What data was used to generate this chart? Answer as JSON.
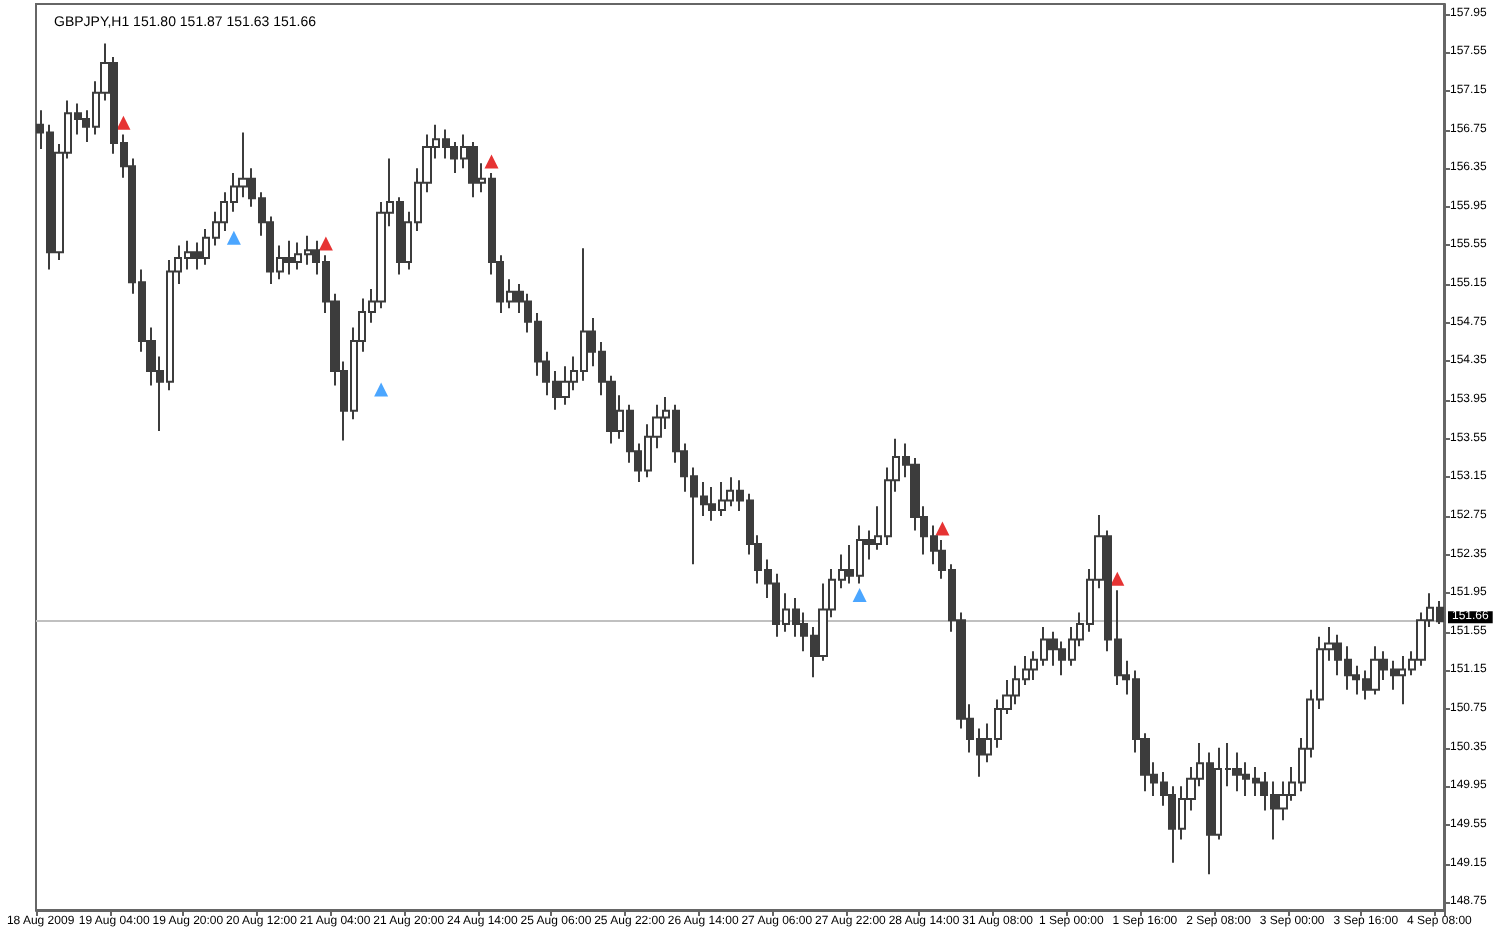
{
  "chart_data": {
    "type": "candlestick",
    "title": "GBPJPY,H1 151.80 151.87 151.63 151.66",
    "color": "#3c3c3c",
    "categories": [
      "18 Aug 2009",
      null,
      null,
      null,
      null,
      null,
      null,
      null,
      "19 Aug 04:00",
      null,
      null,
      null,
      null,
      null,
      null,
      null,
      "19 Aug 20:00",
      null,
      null,
      null,
      null,
      null,
      null,
      null,
      "20 Aug 12:00",
      null,
      null,
      null,
      null,
      null,
      null,
      null,
      "21 Aug 04:00",
      null,
      null,
      null,
      null,
      null,
      null,
      null,
      "21 Aug 20:00",
      null,
      null,
      null,
      null,
      null,
      null,
      null,
      "24 Aug 14:00",
      null,
      null,
      null,
      null,
      null,
      null,
      null,
      "25 Aug 06:00",
      null,
      null,
      null,
      null,
      null,
      null,
      null,
      "25 Aug 22:00",
      null,
      null,
      null,
      null,
      null,
      null,
      null,
      "26 Aug 14:00",
      null,
      null,
      null,
      null,
      null,
      null,
      null,
      "27 Aug 06:00",
      null,
      null,
      null,
      null,
      null,
      null,
      null,
      "27 Aug 22:00",
      null,
      null,
      null,
      null,
      null,
      null,
      null,
      "28 Aug 14:00",
      null,
      null,
      null,
      null,
      null,
      null,
      null,
      "31 Aug 08:00",
      null,
      null,
      null,
      null,
      null,
      null,
      null,
      "1 Sep 00:00",
      null,
      null,
      null,
      null,
      null,
      null,
      null,
      "1 Sep 16:00",
      null,
      null,
      null,
      null,
      null,
      null,
      null,
      "2 Sep 08:00",
      null,
      null,
      null,
      null,
      null,
      null,
      null,
      "3 Sep 00:00",
      null,
      null,
      null,
      null,
      null,
      null,
      null,
      "3 Sep 16:00",
      null,
      null,
      null,
      null,
      null,
      null,
      null,
      "4 Sep 08:00"
    ],
    "ohlc": [
      [
        156.8,
        156.95,
        156.55,
        156.72
      ],
      [
        156.72,
        156.8,
        155.3,
        155.48
      ],
      [
        155.48,
        156.6,
        155.4,
        156.51
      ],
      [
        156.51,
        157.05,
        156.45,
        156.92
      ],
      [
        156.92,
        157.02,
        156.7,
        156.86
      ],
      [
        156.86,
        156.95,
        156.62,
        156.78
      ],
      [
        156.78,
        157.25,
        156.7,
        157.13
      ],
      [
        157.13,
        157.64,
        157.05,
        157.44
      ],
      [
        157.44,
        157.5,
        156.5,
        156.61
      ],
      [
        156.61,
        156.7,
        156.25,
        156.37
      ],
      [
        156.37,
        156.45,
        155.05,
        155.17
      ],
      [
        155.17,
        155.3,
        154.45,
        154.56
      ],
      [
        154.56,
        154.7,
        154.1,
        154.25
      ],
      [
        154.25,
        154.4,
        153.63,
        154.14
      ],
      [
        154.14,
        155.4,
        154.05,
        155.28
      ],
      [
        155.28,
        155.55,
        155.15,
        155.42
      ],
      [
        155.42,
        155.6,
        155.3,
        155.48
      ],
      [
        155.48,
        155.58,
        155.3,
        155.42
      ],
      [
        155.42,
        155.72,
        155.35,
        155.63
      ],
      [
        155.63,
        155.9,
        155.55,
        155.79
      ],
      [
        155.79,
        156.1,
        155.7,
        156.0
      ],
      [
        156.0,
        156.3,
        155.9,
        156.16
      ],
      [
        156.16,
        156.72,
        156.05,
        156.24
      ],
      [
        156.24,
        156.35,
        155.95,
        156.04
      ],
      [
        156.04,
        156.1,
        155.65,
        155.79
      ],
      [
        155.79,
        155.85,
        155.15,
        155.28
      ],
      [
        155.28,
        155.55,
        155.2,
        155.42
      ],
      [
        155.42,
        155.6,
        155.25,
        155.38
      ],
      [
        155.38,
        155.58,
        155.3,
        155.46
      ],
      [
        155.46,
        155.65,
        155.35,
        155.5
      ],
      [
        155.5,
        155.6,
        155.25,
        155.38
      ],
      [
        155.38,
        155.45,
        154.85,
        154.97
      ],
      [
        154.97,
        155.05,
        154.1,
        154.25
      ],
      [
        154.25,
        154.35,
        153.53,
        153.84
      ],
      [
        153.84,
        154.7,
        153.75,
        154.56
      ],
      [
        154.56,
        155.0,
        154.45,
        154.86
      ],
      [
        154.86,
        155.1,
        154.75,
        154.97
      ],
      [
        154.97,
        156.0,
        154.9,
        155.89
      ],
      [
        155.89,
        156.45,
        155.75,
        156.0
      ],
      [
        156.0,
        156.05,
        155.25,
        155.38
      ],
      [
        155.38,
        155.9,
        155.3,
        155.79
      ],
      [
        155.79,
        156.35,
        155.7,
        156.2
      ],
      [
        156.2,
        156.7,
        156.1,
        156.57
      ],
      [
        156.57,
        156.8,
        156.45,
        156.65
      ],
      [
        156.65,
        156.75,
        156.45,
        156.57
      ],
      [
        156.57,
        156.62,
        156.3,
        156.45
      ],
      [
        156.45,
        156.7,
        156.35,
        156.57
      ],
      [
        156.57,
        156.62,
        156.05,
        156.2
      ],
      [
        156.2,
        156.4,
        156.1,
        156.24
      ],
      [
        156.24,
        156.3,
        155.25,
        155.38
      ],
      [
        155.38,
        155.45,
        154.85,
        154.97
      ],
      [
        154.97,
        155.2,
        154.9,
        155.07
      ],
      [
        155.07,
        155.15,
        154.85,
        154.97
      ],
      [
        154.97,
        155.05,
        154.65,
        154.76
      ],
      [
        154.76,
        154.85,
        154.2,
        154.35
      ],
      [
        154.35,
        154.45,
        154.0,
        154.14
      ],
      [
        154.14,
        154.25,
        153.85,
        153.98
      ],
      [
        153.98,
        154.3,
        153.9,
        154.14
      ],
      [
        154.14,
        154.4,
        154.05,
        154.25
      ],
      [
        154.25,
        155.52,
        154.15,
        154.66
      ],
      [
        154.66,
        154.8,
        154.3,
        154.45
      ],
      [
        154.45,
        154.55,
        154.0,
        154.14
      ],
      [
        154.14,
        154.2,
        153.5,
        153.63
      ],
      [
        153.63,
        154.0,
        153.55,
        153.84
      ],
      [
        153.84,
        153.9,
        153.3,
        153.42
      ],
      [
        153.42,
        153.5,
        153.1,
        153.22
      ],
      [
        153.22,
        153.7,
        153.15,
        153.57
      ],
      [
        153.57,
        153.9,
        153.45,
        153.77
      ],
      [
        153.77,
        153.98,
        153.65,
        153.84
      ],
      [
        153.84,
        153.9,
        153.3,
        153.42
      ],
      [
        153.42,
        153.5,
        153.0,
        153.16
      ],
      [
        153.16,
        153.25,
        152.25,
        152.95
      ],
      [
        152.95,
        153.1,
        152.75,
        152.87
      ],
      [
        152.87,
        153.05,
        152.7,
        152.81
      ],
      [
        152.81,
        153.1,
        152.75,
        152.91
      ],
      [
        152.91,
        153.15,
        152.85,
        153.01
      ],
      [
        153.01,
        153.12,
        152.8,
        152.91
      ],
      [
        152.91,
        152.98,
        152.35,
        152.46
      ],
      [
        152.46,
        152.55,
        152.05,
        152.19
      ],
      [
        152.19,
        152.3,
        151.9,
        152.05
      ],
      [
        152.05,
        152.15,
        151.5,
        151.63
      ],
      [
        151.63,
        151.95,
        151.55,
        151.78
      ],
      [
        151.78,
        151.9,
        151.5,
        151.63
      ],
      [
        151.63,
        151.75,
        151.35,
        151.51
      ],
      [
        151.51,
        151.6,
        151.08,
        151.3
      ],
      [
        151.3,
        152.05,
        151.25,
        151.78
      ],
      [
        151.78,
        152.2,
        151.7,
        152.09
      ],
      [
        152.09,
        152.35,
        152.0,
        152.19
      ],
      [
        152.19,
        152.45,
        152.05,
        152.13
      ],
      [
        152.13,
        152.65,
        152.05,
        152.5
      ],
      [
        152.5,
        152.6,
        152.3,
        152.46
      ],
      [
        152.46,
        152.85,
        152.4,
        152.54
      ],
      [
        152.54,
        153.25,
        152.45,
        153.12
      ],
      [
        153.12,
        153.55,
        153.0,
        153.36
      ],
      [
        153.36,
        153.5,
        153.15,
        153.28
      ],
      [
        153.28,
        153.35,
        152.6,
        152.74
      ],
      [
        152.74,
        152.85,
        152.35,
        152.54
      ],
      [
        152.54,
        152.65,
        152.25,
        152.39
      ],
      [
        152.39,
        152.5,
        152.1,
        152.19
      ],
      [
        152.19,
        152.25,
        151.55,
        151.67
      ],
      [
        151.67,
        151.75,
        150.55,
        150.65
      ],
      [
        150.65,
        150.8,
        150.3,
        150.44
      ],
      [
        150.44,
        150.55,
        150.05,
        150.28
      ],
      [
        150.28,
        150.6,
        150.2,
        150.44
      ],
      [
        150.44,
        150.85,
        150.35,
        150.75
      ],
      [
        150.75,
        151.05,
        150.7,
        150.89
      ],
      [
        150.89,
        151.2,
        150.8,
        151.06
      ],
      [
        151.06,
        151.3,
        151.0,
        151.16
      ],
      [
        151.16,
        151.35,
        151.05,
        151.26
      ],
      [
        151.26,
        151.6,
        151.2,
        151.47
      ],
      [
        151.47,
        151.55,
        151.2,
        151.37
      ],
      [
        151.37,
        151.45,
        151.1,
        151.26
      ],
      [
        151.26,
        151.6,
        151.2,
        151.47
      ],
      [
        151.47,
        151.75,
        151.4,
        151.63
      ],
      [
        151.63,
        152.2,
        151.55,
        152.09
      ],
      [
        152.09,
        152.76,
        152.0,
        152.54
      ],
      [
        152.54,
        152.6,
        151.35,
        151.47
      ],
      [
        151.47,
        151.98,
        151.0,
        151.1
      ],
      [
        151.1,
        151.25,
        150.9,
        151.06
      ],
      [
        151.06,
        151.15,
        150.3,
        150.44
      ],
      [
        150.44,
        150.5,
        149.9,
        150.07
      ],
      [
        150.07,
        150.2,
        149.85,
        149.99
      ],
      [
        149.99,
        150.1,
        149.75,
        149.86
      ],
      [
        149.86,
        149.95,
        149.16,
        149.51
      ],
      [
        149.51,
        149.95,
        149.4,
        149.82
      ],
      [
        149.82,
        150.15,
        149.7,
        150.03
      ],
      [
        150.03,
        150.4,
        149.95,
        150.19
      ],
      [
        150.19,
        150.3,
        149.04,
        149.45
      ],
      [
        149.45,
        150.35,
        149.4,
        150.13
      ],
      [
        150.13,
        150.4,
        149.95,
        150.13
      ],
      [
        150.13,
        150.3,
        149.9,
        150.07
      ],
      [
        150.07,
        150.2,
        149.85,
        150.03
      ],
      [
        150.03,
        150.15,
        149.85,
        149.99
      ],
      [
        149.99,
        150.1,
        149.7,
        149.86
      ],
      [
        149.86,
        150.0,
        149.4,
        149.72
      ],
      [
        149.72,
        150.0,
        149.6,
        149.86
      ],
      [
        149.86,
        150.15,
        149.8,
        149.99
      ],
      [
        149.99,
        150.45,
        149.9,
        150.34
      ],
      [
        150.34,
        150.95,
        150.25,
        150.85
      ],
      [
        150.85,
        151.5,
        150.75,
        151.37
      ],
      [
        151.37,
        151.6,
        151.25,
        151.43
      ],
      [
        151.43,
        151.52,
        151.1,
        151.26
      ],
      [
        151.26,
        151.4,
        150.95,
        151.1
      ],
      [
        151.1,
        151.2,
        150.9,
        151.06
      ],
      [
        151.06,
        151.15,
        150.85,
        150.95
      ],
      [
        150.95,
        151.4,
        150.9,
        151.26
      ],
      [
        151.26,
        151.35,
        151.05,
        151.16
      ],
      [
        151.16,
        151.25,
        150.95,
        151.1
      ],
      [
        151.1,
        151.3,
        150.8,
        151.16
      ],
      [
        151.16,
        151.35,
        151.1,
        151.26
      ],
      [
        151.26,
        151.75,
        151.2,
        151.67
      ],
      [
        151.67,
        151.95,
        151.6,
        151.8
      ],
      [
        151.8,
        151.87,
        151.63,
        151.66
      ]
    ],
    "series": [
      {
        "type": "scatter",
        "marker": "triangle",
        "color": "#e00000",
        "values": [
          null,
          null,
          null,
          null,
          null,
          null,
          null,
          null,
          null,
          156.82,
          null,
          null,
          null,
          null,
          null,
          null,
          null,
          null,
          null,
          null,
          null,
          null,
          null,
          null,
          null,
          null,
          null,
          null,
          null,
          null,
          null,
          155.57,
          null,
          null,
          null,
          null,
          null,
          null,
          null,
          null,
          null,
          null,
          null,
          null,
          null,
          null,
          null,
          null,
          null,
          156.42,
          null,
          null,
          null,
          null,
          null,
          null,
          null,
          null,
          null,
          null,
          null,
          null,
          null,
          null,
          null,
          null,
          null,
          null,
          null,
          null,
          null,
          null,
          null,
          null,
          null,
          null,
          null,
          null,
          null,
          null,
          null,
          null,
          null,
          null,
          null,
          null,
          null,
          null,
          null,
          null,
          null,
          null,
          null,
          null,
          null,
          null,
          null,
          null,
          152.62,
          null,
          null,
          null,
          null,
          null,
          null,
          null,
          null,
          null,
          null,
          null,
          null,
          null,
          null,
          null,
          null,
          null,
          null,
          152.1,
          null,
          null,
          null,
          null,
          null,
          null,
          null,
          null,
          null,
          null,
          null,
          null,
          null,
          null,
          null,
          null,
          null,
          null,
          null,
          null,
          null,
          null,
          null,
          null,
          null,
          null,
          null,
          null,
          null,
          null,
          null,
          null,
          null,
          null,
          null
        ]
      },
      {
        "type": "scatter",
        "marker": "triangle",
        "color": "#1e90ff",
        "values": [
          null,
          null,
          null,
          null,
          null,
          null,
          null,
          null,
          null,
          null,
          null,
          null,
          null,
          null,
          null,
          null,
          null,
          null,
          null,
          null,
          null,
          155.63,
          null,
          null,
          null,
          null,
          null,
          null,
          null,
          null,
          null,
          null,
          null,
          null,
          null,
          null,
          null,
          154.06,
          null,
          null,
          null,
          null,
          null,
          null,
          null,
          null,
          null,
          null,
          null,
          null,
          null,
          null,
          null,
          null,
          null,
          null,
          null,
          null,
          null,
          null,
          null,
          null,
          null,
          null,
          null,
          null,
          null,
          null,
          null,
          null,
          null,
          null,
          null,
          null,
          null,
          null,
          null,
          null,
          null,
          null,
          null,
          null,
          null,
          null,
          null,
          null,
          null,
          null,
          null,
          151.93,
          null,
          null,
          null,
          null,
          null,
          null,
          null,
          null,
          null,
          null,
          null,
          null,
          null,
          null,
          null,
          null,
          null,
          null,
          null,
          null,
          null,
          null,
          null,
          null,
          null,
          null,
          null,
          null,
          null,
          null,
          null,
          null,
          null,
          null,
          null,
          null,
          null,
          null,
          null,
          null,
          null,
          null,
          null,
          null,
          null,
          null,
          null,
          null,
          null,
          null,
          null,
          null,
          null,
          null,
          null,
          null,
          null,
          null,
          null,
          null,
          null,
          null,
          null
        ]
      }
    ],
    "ylim": [
      148.67,
      158.05
    ],
    "yticks": [
      157.95,
      157.55,
      157.15,
      156.75,
      156.35,
      155.95,
      155.55,
      155.15,
      154.75,
      154.35,
      153.95,
      153.55,
      153.15,
      152.75,
      152.35,
      151.95,
      151.55,
      151.15,
      150.75,
      150.35,
      149.95,
      149.55,
      149.15,
      148.75
    ],
    "ref_lines": [
      {
        "axis": "y",
        "value": 151.66,
        "label": "151.66",
        "color": "#c0c0c0"
      }
    ],
    "grid": false
  }
}
